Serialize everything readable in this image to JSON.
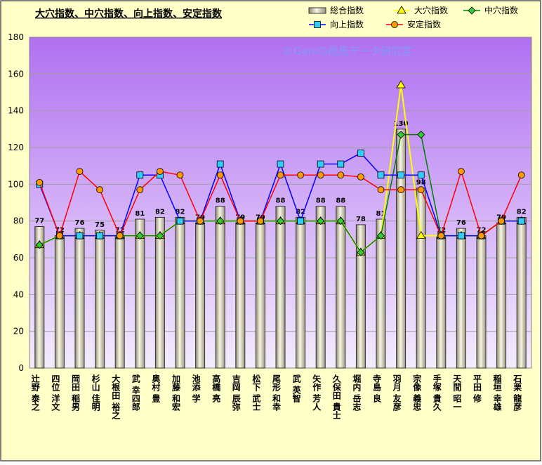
{
  "chart_data": {
    "type": "combo",
    "title": "大穴指数、中穴指数、向上指数、安定指数",
    "watermark": "©Ganiの競馬データ研究室",
    "categories": [
      "辻野 泰之",
      "四位 洋文",
      "岡田 稲男",
      "杉山 佳明",
      "大根田 裕之",
      "武 幸四郎",
      "奥村 豊",
      "加藤 和宏",
      "池添 学",
      "高橋 亮",
      "吉岡 辰弥",
      "松下 武士",
      "尾形 和幸",
      "武 英智",
      "矢作 芳人",
      "久保田 貴士",
      "堀内 岳志",
      "寺島 良",
      "羽月 友彦",
      "宗像 義忠",
      "手塚 貴久",
      "天間 昭一",
      "平田 修",
      "稲垣 幸雄",
      "石栗 龍彦"
    ],
    "series": [
      {
        "name": "総合指数",
        "type": "bar",
        "color": "#d8d4b8",
        "values": [
          77,
          72,
          76,
          75,
          72,
          81,
          82,
          82,
          79,
          88,
          79,
          79,
          88,
          82,
          88,
          88,
          78,
          81,
          130,
          98,
          72,
          76,
          72,
          79,
          82
        ]
      },
      {
        "name": "大穴指数",
        "type": "line",
        "marker": "triangle",
        "color": "#ffff00",
        "values": [
          67,
          72,
          72,
          72,
          72,
          72,
          72,
          80,
          80,
          80,
          80,
          80,
          80,
          80,
          80,
          80,
          63,
          72,
          154,
          72,
          72,
          72,
          72,
          80,
          80
        ]
      },
      {
        "name": "中穴指数",
        "type": "line",
        "marker": "diamond",
        "color": "#008000",
        "values": [
          67,
          72,
          72,
          72,
          72,
          72,
          72,
          80,
          80,
          80,
          80,
          80,
          80,
          80,
          80,
          80,
          63,
          72,
          127,
          127,
          72,
          72,
          72,
          80,
          80
        ]
      },
      {
        "name": "向上指数",
        "type": "line",
        "marker": "square",
        "color": "#0000ff",
        "values": [
          100,
          72,
          72,
          72,
          72,
          105,
          105,
          80,
          80,
          111,
          80,
          80,
          111,
          80,
          111,
          111,
          117,
          105,
          105,
          105,
          72,
          72,
          72,
          80,
          80
        ]
      },
      {
        "name": "安定指数",
        "type": "line",
        "marker": "circle",
        "color": "#ff0000",
        "values": [
          101,
          72,
          107,
          97,
          72,
          97,
          107,
          105,
          80,
          105,
          80,
          80,
          105,
          105,
          105,
          105,
          104,
          97,
          97,
          97,
          72,
          107,
          72,
          80,
          105
        ]
      }
    ],
    "ylim": [
      0,
      180
    ],
    "yticks": [
      0,
      20,
      40,
      60,
      80,
      100,
      120,
      140,
      160,
      180
    ],
    "grid": true
  }
}
